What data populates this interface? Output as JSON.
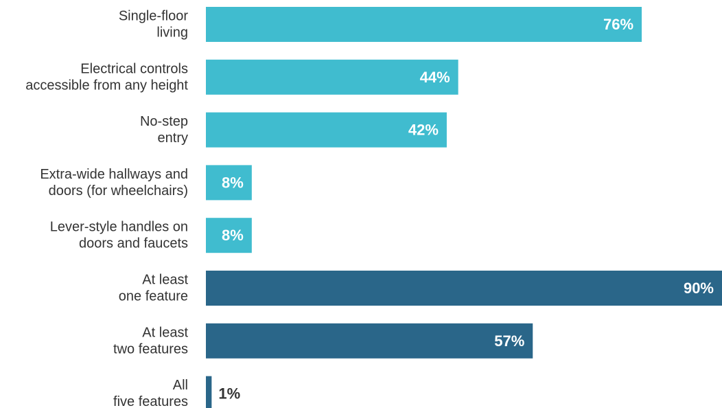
{
  "chart_data": {
    "type": "bar",
    "orientation": "horizontal",
    "categories": [
      "Single-floor\nliving",
      "Electrical controls\naccessible from any height",
      "No-step\nentry",
      "Extra-wide hallways and\ndoors (for wheelchairs)",
      "Lever-style handles on\ndoors and faucets",
      "At least\none feature",
      "At least\ntwo features",
      "All\nfive features"
    ],
    "values": [
      76,
      44,
      42,
      8,
      8,
      90,
      57,
      1
    ],
    "value_labels": [
      "76%",
      "44%",
      "42%",
      "8%",
      "8%",
      "90%",
      "57%",
      "1%"
    ],
    "bar_colors": [
      "#40bccf",
      "#40bccf",
      "#40bccf",
      "#40bccf",
      "#40bccf",
      "#2a6689",
      "#2a6689",
      "#2a6689"
    ],
    "xlim": [
      0,
      90
    ],
    "grid": false,
    "title": "",
    "xlabel": "",
    "ylabel": ""
  }
}
